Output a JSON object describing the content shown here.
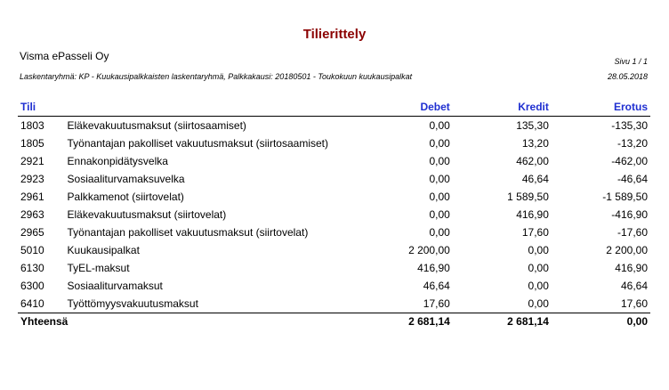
{
  "report": {
    "title": "Tilierittely",
    "company": "Visma ePasseli Oy",
    "page": "Sivu 1 / 1",
    "meta": "Laskentaryhmä: KP - Kuukausipalkkaisten laskentaryhmä, Palkkakausi: 20180501 - Toukokuun kuukausipalkat",
    "date": "28.05.2018"
  },
  "table": {
    "headers": {
      "account": "Tili",
      "name": "",
      "debet": "Debet",
      "kredit": "Kredit",
      "erotus": "Erotus"
    },
    "rows": [
      {
        "account": "1803",
        "name": "Eläkevakuutusmaksut (siirtosaamiset)",
        "debet": "0,00",
        "kredit": "135,30",
        "erotus": "-135,30"
      },
      {
        "account": "1805",
        "name": "Työnantajan pakolliset vakuutusmaksut (siirtosaamiset)",
        "debet": "0,00",
        "kredit": "13,20",
        "erotus": "-13,20"
      },
      {
        "account": "2921",
        "name": "Ennakonpidätysvelka",
        "debet": "0,00",
        "kredit": "462,00",
        "erotus": "-462,00"
      },
      {
        "account": "2923",
        "name": "Sosiaaliturvamaksuvelka",
        "debet": "0,00",
        "kredit": "46,64",
        "erotus": "-46,64"
      },
      {
        "account": "2961",
        "name": "Palkkamenot (siirtovelat)",
        "debet": "0,00",
        "kredit": "1 589,50",
        "erotus": "-1 589,50"
      },
      {
        "account": "2963",
        "name": "Eläkevakuutusmaksut (siirtovelat)",
        "debet": "0,00",
        "kredit": "416,90",
        "erotus": "-416,90"
      },
      {
        "account": "2965",
        "name": "Työnantajan pakolliset vakuutusmaksut (siirtovelat)",
        "debet": "0,00",
        "kredit": "17,60",
        "erotus": "-17,60"
      },
      {
        "account": "5010",
        "name": "Kuukausipalkat",
        "debet": "2 200,00",
        "kredit": "0,00",
        "erotus": "2 200,00"
      },
      {
        "account": "6130",
        "name": "TyEL-maksut",
        "debet": "416,90",
        "kredit": "0,00",
        "erotus": "416,90"
      },
      {
        "account": "6300",
        "name": "Sosiaaliturvamaksut",
        "debet": "46,64",
        "kredit": "0,00",
        "erotus": "46,64"
      },
      {
        "account": "6410",
        "name": "Työttömyysvakuutusmaksut",
        "debet": "17,60",
        "kredit": "0,00",
        "erotus": "17,60"
      }
    ],
    "total": {
      "label": "Yhteensä",
      "debet": "2 681,14",
      "kredit": "2 681,14",
      "erotus": "0,00"
    }
  },
  "colors": {
    "title": "#8b0000",
    "header": "#1f2fd1"
  }
}
